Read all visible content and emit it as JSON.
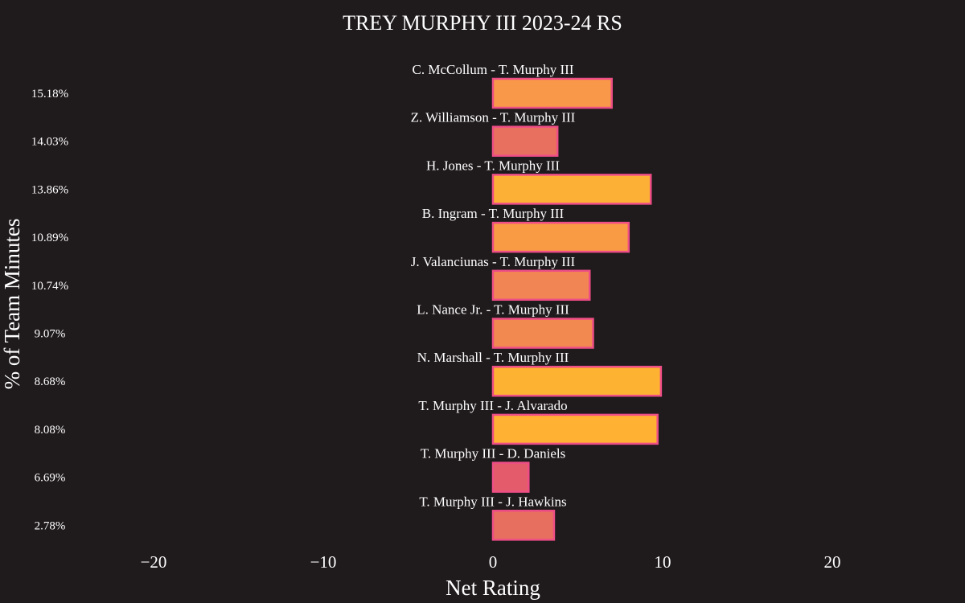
{
  "chart_data": {
    "type": "bar",
    "orientation": "horizontal",
    "title": "TREY MURPHY III 2023-24 RS",
    "xlabel": "Net Rating",
    "ylabel": "% of Team Minutes",
    "xlim": [
      -25,
      28
    ],
    "xticks": [
      -20,
      -10,
      0,
      10,
      20
    ],
    "xtick_labels": [
      "−20",
      "−10",
      "0",
      "10",
      "20"
    ],
    "grid": false,
    "bar_outline_color": "#ee4e86",
    "background_color": "#1f1a1c",
    "bars": [
      {
        "pair": "C. McCollum - T. Murphy III",
        "minutes_pct": "15.18%",
        "net_rating": 7.0,
        "color": "#f89848"
      },
      {
        "pair": "Z. Williamson - T. Murphy III",
        "minutes_pct": "14.03%",
        "net_rating": 3.8,
        "color": "#e8705e"
      },
      {
        "pair": "H. Jones - T. Murphy III",
        "minutes_pct": "13.86%",
        "net_rating": 9.3,
        "color": "#fdb036"
      },
      {
        "pair": "B. Ingram - T. Murphy III",
        "minutes_pct": "10.89%",
        "net_rating": 8.0,
        "color": "#f99b44"
      },
      {
        "pair": "J. Valanciunas - T. Murphy III",
        "minutes_pct": "10.74%",
        "net_rating": 5.7,
        "color": "#f18553"
      },
      {
        "pair": "L. Nance Jr. - T. Murphy III",
        "minutes_pct": "9.07%",
        "net_rating": 5.9,
        "color": "#f28951"
      },
      {
        "pair": "N. Marshall - T. Murphy III",
        "minutes_pct": "8.68%",
        "net_rating": 9.9,
        "color": "#feb231"
      },
      {
        "pair": "T. Murphy III - J. Alvarado",
        "minutes_pct": "8.08%",
        "net_rating": 9.7,
        "color": "#feb133"
      },
      {
        "pair": "T. Murphy III - D. Daniels",
        "minutes_pct": "6.69%",
        "net_rating": 2.1,
        "color": "#e45c6c"
      },
      {
        "pair": "T. Murphy III - J. Hawkins",
        "minutes_pct": "2.78%",
        "net_rating": 3.6,
        "color": "#e76f5f"
      }
    ]
  }
}
